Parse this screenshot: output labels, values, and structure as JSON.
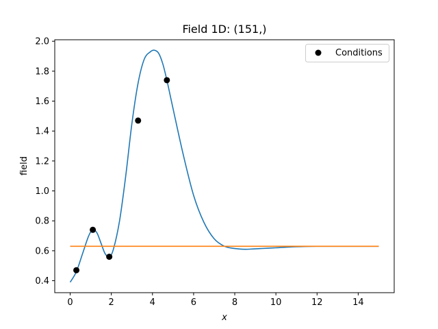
{
  "chart_data": {
    "type": "line",
    "title": "Field 1D: (151,)",
    "xlabel": "x",
    "ylabel": "field",
    "xlim": [
      -0.75,
      15.75
    ],
    "ylim": [
      0.32,
      2.01
    ],
    "xticks": [
      0,
      2,
      4,
      6,
      8,
      10,
      12,
      14
    ],
    "xtick_labels": [
      "0",
      "2",
      "4",
      "6",
      "8",
      "10",
      "12",
      "14"
    ],
    "yticks": [
      0.4,
      0.6,
      0.8,
      1.0,
      1.2,
      1.4,
      1.6,
      1.8,
      2.0
    ],
    "ytick_labels": [
      "0.4",
      "0.6",
      "0.8",
      "1.0",
      "1.2",
      "1.4",
      "1.6",
      "1.8",
      "2.0"
    ],
    "grid": false,
    "legend_position": "top-right",
    "legend": [
      "Conditions"
    ],
    "series": [
      {
        "kind": "line",
        "color": "#1f77b4",
        "x": [
          0,
          0.3,
          0.6,
          0.9,
          1.1,
          1.3,
          1.5,
          1.7,
          1.9,
          2.1,
          2.4,
          2.7,
          3.0,
          3.3,
          3.6,
          3.9,
          4.1,
          4.3,
          4.5,
          4.7,
          5.0,
          5.5,
          6.0,
          6.5,
          7.0,
          7.5,
          8.0,
          8.5,
          9.0,
          10.0,
          11.0,
          12.0,
          13.0,
          14.0,
          15.0
        ],
        "y": [
          0.39,
          0.46,
          0.58,
          0.7,
          0.74,
          0.72,
          0.65,
          0.58,
          0.56,
          0.61,
          0.8,
          1.1,
          1.45,
          1.72,
          1.88,
          1.93,
          1.94,
          1.92,
          1.85,
          1.74,
          1.55,
          1.24,
          0.97,
          0.79,
          0.68,
          0.63,
          0.615,
          0.61,
          0.613,
          0.62,
          0.627,
          0.63,
          0.63,
          0.63,
          0.63
        ]
      },
      {
        "kind": "line",
        "color": "#ff7f0e",
        "x": [
          0,
          15
        ],
        "y": [
          0.63,
          0.63
        ]
      },
      {
        "kind": "scatter",
        "name": "Conditions",
        "color": "#000000",
        "x": [
          0.3,
          1.1,
          1.9,
          3.3,
          4.7
        ],
        "y": [
          0.47,
          0.74,
          0.56,
          1.47,
          1.74
        ]
      }
    ]
  }
}
